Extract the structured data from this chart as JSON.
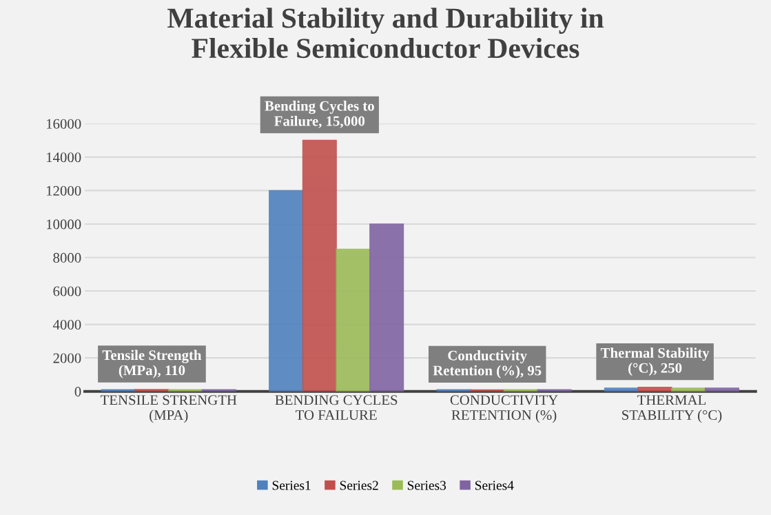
{
  "chart_data": {
    "type": "bar",
    "title": "Material Stability and Durability in\nFlexible Semiconductor Devices",
    "categories": [
      "TENSILE STRENGTH\n(MPA)",
      "BENDING CYCLES\nTO FAILURE",
      "CONDUCTIVITY\nRETENTION (%)",
      "THERMAL\nSTABILITY (°C)"
    ],
    "series": [
      {
        "name": "Series1",
        "color": "#4f81bd",
        "values": [
          100,
          12000,
          100,
          200
        ]
      },
      {
        "name": "Series2",
        "color": "#c0504d",
        "values": [
          110,
          15000,
          95,
          250
        ],
        "value_labels": [
          "Tensile Strength\n(MPa), 110",
          "Bending Cycles to\nFailure, 15,000",
          "Conductivity\nRetention (%), 95",
          "Thermal Stability\n(°C), 250"
        ]
      },
      {
        "name": "Series3",
        "color": "#9bbb59",
        "values": [
          100,
          8500,
          100,
          200
        ]
      },
      {
        "name": "Series4",
        "color": "#8064a2",
        "values": [
          100,
          10000,
          100,
          200
        ]
      }
    ],
    "ylim": [
      0,
      16000
    ],
    "yticks": [
      0,
      2000,
      4000,
      6000,
      8000,
      10000,
      12000,
      14000,
      16000
    ],
    "grid": "y",
    "legend": "bottom"
  }
}
